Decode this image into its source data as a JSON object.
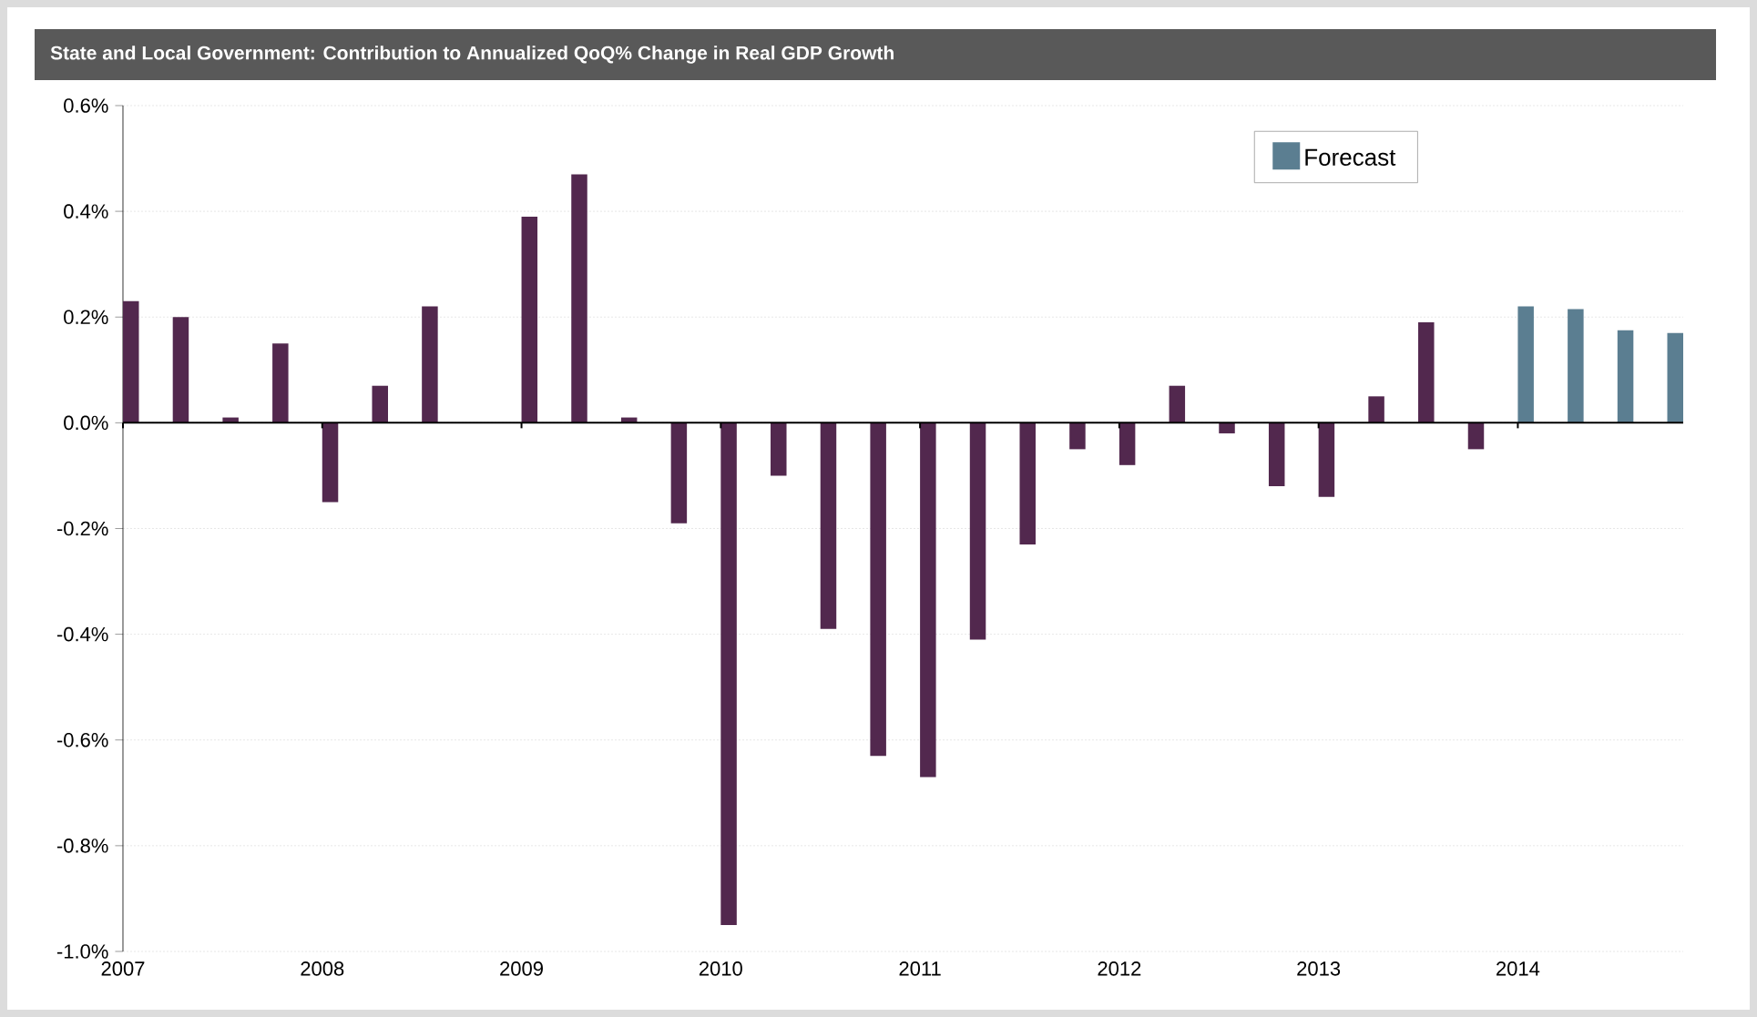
{
  "chart_data": {
    "type": "bar",
    "title": "State and Local Government: Contribution to Annualized QoQ% Change in Real GDP Growth",
    "categories": [
      "2007",
      null,
      null,
      null,
      "2008",
      null,
      null,
      null,
      "2009",
      null,
      null,
      null,
      "2010",
      null,
      null,
      null,
      "2011",
      null,
      null,
      null,
      "2012",
      null,
      null,
      null,
      "2013",
      null,
      null,
      null,
      "2014",
      null,
      null,
      null
    ],
    "series": [
      {
        "color": "#52284e",
        "values": [
          0.23,
          0.2,
          0.01,
          0.15,
          -0.15,
          0.07,
          0.22,
          0.0,
          0.39,
          0.47,
          0.01,
          -0.19,
          -0.95,
          -0.1,
          -0.39,
          -0.63,
          -0.67,
          -0.41,
          -0.23,
          -0.05,
          -0.08,
          0.07,
          -0.02,
          -0.12,
          -0.14,
          0.05,
          0.19,
          -0.05,
          null,
          null,
          null,
          null
        ]
      },
      {
        "name": "Forecast",
        "color": "#5b7e91",
        "values": [
          null,
          null,
          null,
          null,
          null,
          null,
          null,
          null,
          null,
          null,
          null,
          null,
          null,
          null,
          null,
          null,
          null,
          null,
          null,
          null,
          null,
          null,
          null,
          null,
          null,
          null,
          null,
          null,
          0.22,
          0.215,
          0.175,
          0.17
        ]
      }
    ],
    "ylim": [
      -1.0,
      0.6
    ],
    "yticks": [
      {
        "value": -1.0,
        "label": "-1.0%"
      },
      {
        "value": -0.8,
        "label": "-0.8%"
      },
      {
        "value": -0.6,
        "label": "-0.6%"
      },
      {
        "value": -0.4,
        "label": "-0.4%"
      },
      {
        "value": -0.2,
        "label": "-0.2%"
      },
      {
        "value": 0.0,
        "label": "0.0%"
      },
      {
        "value": 0.2,
        "label": "0.2%"
      },
      {
        "value": 0.4,
        "label": "0.4%"
      },
      {
        "value": 0.6,
        "label": "0.6%"
      }
    ],
    "grid": "y",
    "legend": "top right"
  }
}
